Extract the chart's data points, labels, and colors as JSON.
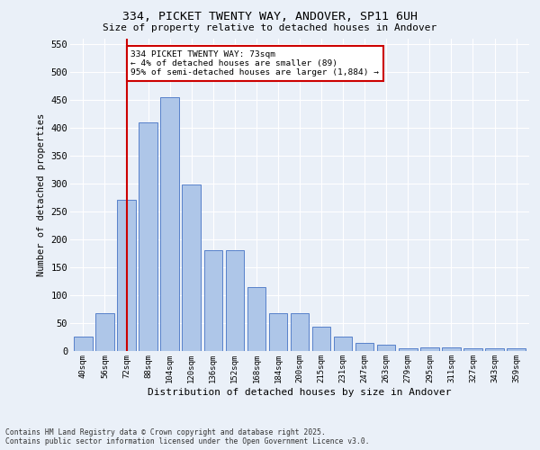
{
  "title": "334, PICKET TWENTY WAY, ANDOVER, SP11 6UH",
  "subtitle": "Size of property relative to detached houses in Andover",
  "xlabel": "Distribution of detached houses by size in Andover",
  "ylabel": "Number of detached properties",
  "footer_line1": "Contains HM Land Registry data © Crown copyright and database right 2025.",
  "footer_line2": "Contains public sector information licensed under the Open Government Licence v3.0.",
  "bar_labels": [
    "40sqm",
    "56sqm",
    "72sqm",
    "88sqm",
    "104sqm",
    "120sqm",
    "136sqm",
    "152sqm",
    "168sqm",
    "184sqm",
    "200sqm",
    "215sqm",
    "231sqm",
    "247sqm",
    "263sqm",
    "279sqm",
    "295sqm",
    "311sqm",
    "327sqm",
    "343sqm",
    "359sqm"
  ],
  "bar_values": [
    25,
    68,
    270,
    410,
    455,
    298,
    181,
    181,
    115,
    68,
    68,
    43,
    25,
    14,
    11,
    5,
    6,
    6,
    5,
    5,
    5
  ],
  "bar_color": "#aec6e8",
  "bar_edge_color": "#4472c4",
  "bg_color": "#eaf0f8",
  "grid_color": "#ffffff",
  "vline_x": 2,
  "vline_color": "#cc0000",
  "annotation_text": "334 PICKET TWENTY WAY: 73sqm\n← 4% of detached houses are smaller (89)\n95% of semi-detached houses are larger (1,884) →",
  "annotation_box_color": "#cc0000",
  "ylim": [
    0,
    560
  ],
  "yticks": [
    0,
    50,
    100,
    150,
    200,
    250,
    300,
    350,
    400,
    450,
    500,
    550
  ]
}
